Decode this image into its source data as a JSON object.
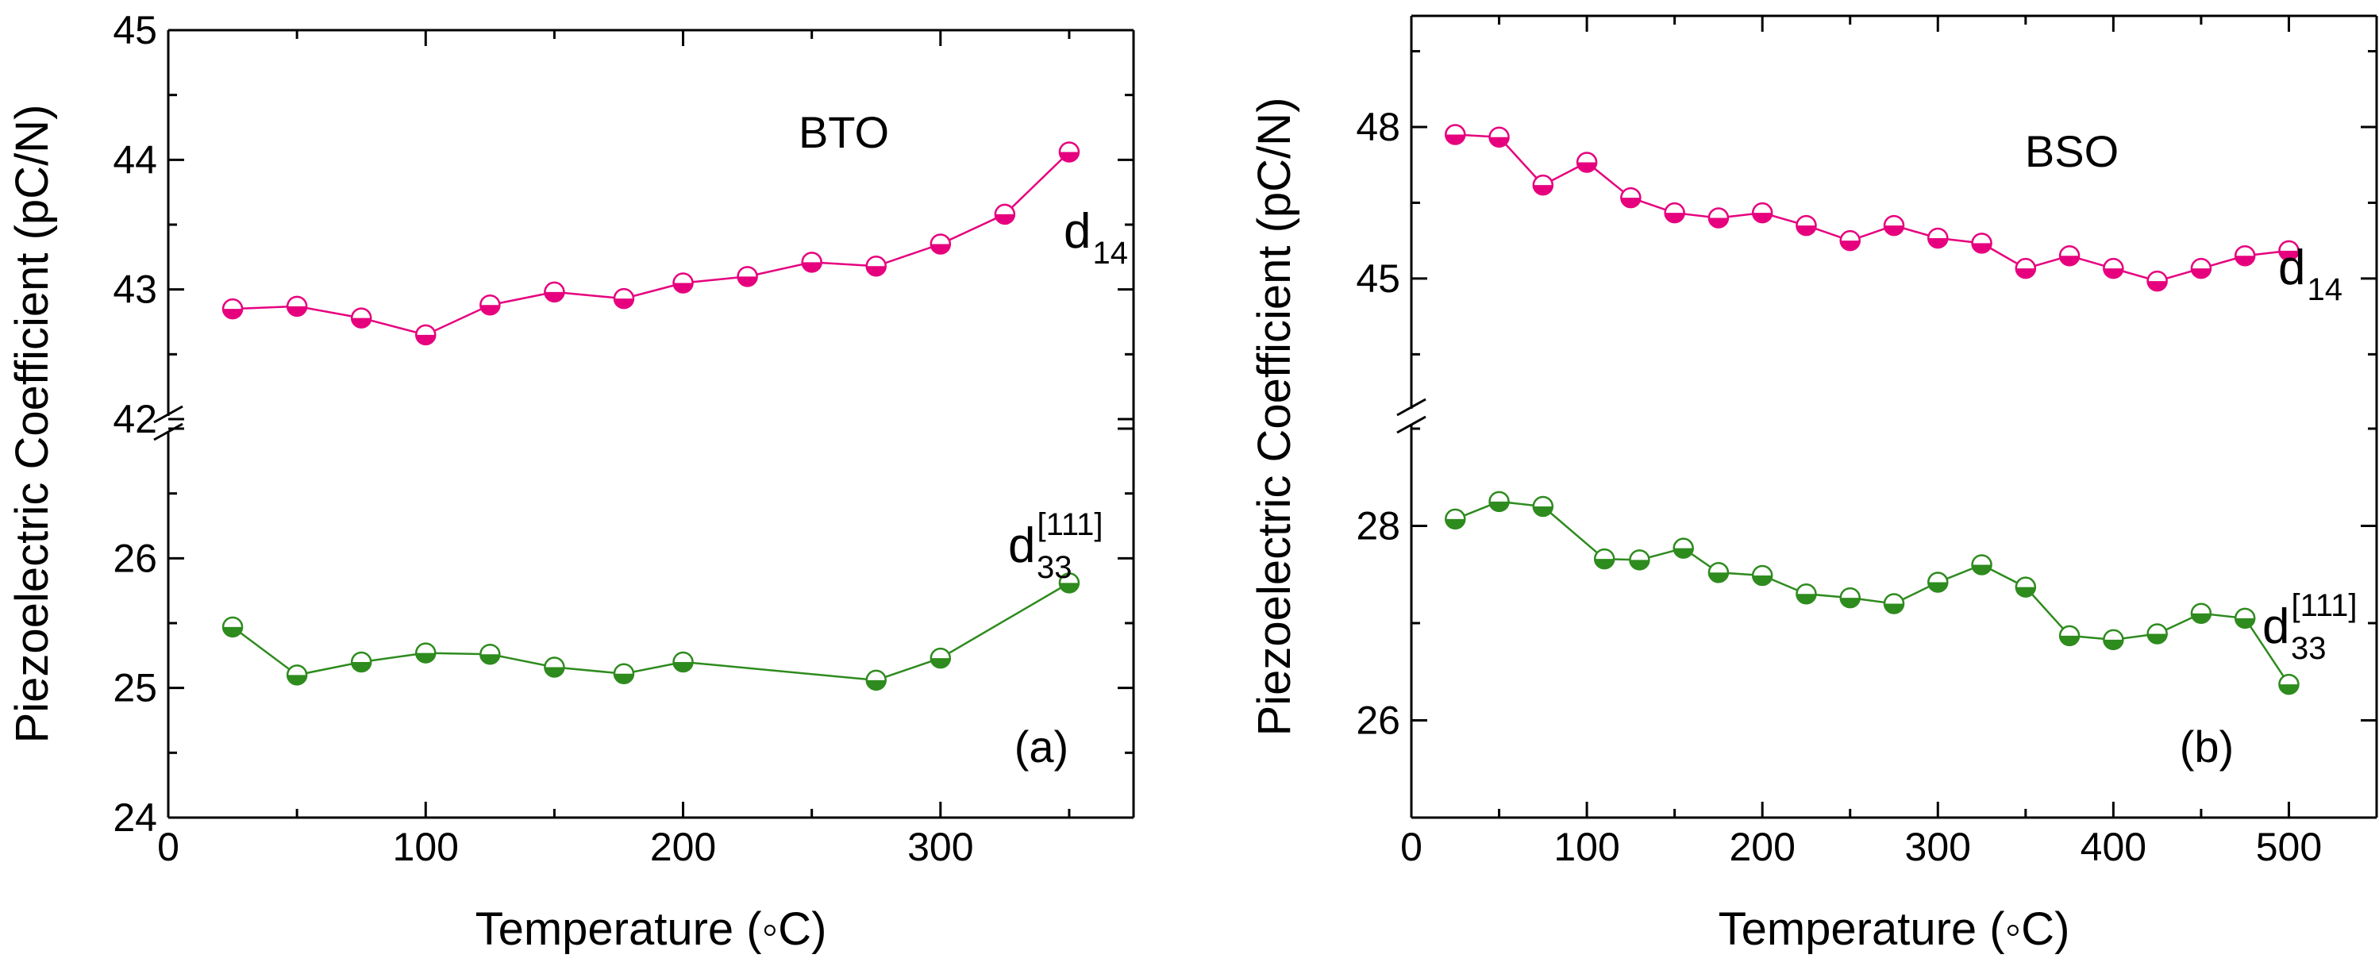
{
  "chart_data": [
    {
      "type": "line",
      "panel_label": "(a)",
      "annotation": "BTO",
      "xlabel": "Temperature (◦C)",
      "ylabel": "Piezoelectric Coefficient (pC/N)",
      "xlim": [
        0,
        375
      ],
      "xticks": [
        0,
        100,
        200,
        300
      ],
      "broken_y_axis": true,
      "upper_ylim": [
        42,
        45
      ],
      "upper_yticks": [
        42,
        43,
        44,
        45
      ],
      "lower_ylim": [
        24,
        27
      ],
      "lower_yticks": [
        24,
        25,
        26
      ],
      "grid": false,
      "series": [
        {
          "name": "d14",
          "name_main": "d",
          "name_sub": "14",
          "name_sup": "",
          "color": "#e6007e",
          "segment": "upper",
          "x": [
            25,
            50,
            75,
            100,
            125,
            150,
            177,
            200,
            225,
            250,
            275,
            300,
            325,
            350
          ],
          "y": [
            42.85,
            42.87,
            42.78,
            42.65,
            42.88,
            42.98,
            42.93,
            43.05,
            43.1,
            43.21,
            43.18,
            43.35,
            43.58,
            44.06
          ]
        },
        {
          "name": "d33[111]",
          "name_main": "d",
          "name_sub": "33",
          "name_sup": "[111]",
          "color": "#2e8b1e",
          "segment": "lower",
          "x": [
            25,
            50,
            75,
            100,
            125,
            150,
            177,
            200,
            275,
            300,
            350
          ],
          "y": [
            25.47,
            25.1,
            25.2,
            25.27,
            25.26,
            25.16,
            25.11,
            25.2,
            25.06,
            25.23,
            25.81
          ]
        }
      ]
    },
    {
      "type": "line",
      "panel_label": "(b)",
      "annotation": "BSO",
      "xlabel": "Temperature (◦C)",
      "ylabel": "Piezoelectric Coefficient (pC/N)",
      "xlim": [
        0,
        550
      ],
      "xticks": [
        0,
        100,
        200,
        300,
        400,
        500
      ],
      "broken_y_axis": true,
      "upper_ylim": [
        42.5,
        50.2
      ],
      "upper_yticks": [
        45,
        48
      ],
      "lower_ylim": [
        25,
        29
      ],
      "lower_yticks": [
        26,
        28
      ],
      "grid": false,
      "series": [
        {
          "name": "d14",
          "name_main": "d",
          "name_sub": "14",
          "name_sup": "",
          "color": "#e6007e",
          "segment": "upper",
          "x": [
            25,
            50,
            75,
            100,
            125,
            150,
            175,
            200,
            225,
            250,
            275,
            300,
            325,
            350,
            375,
            400,
            425,
            450,
            475,
            500
          ],
          "y": [
            47.85,
            47.8,
            46.85,
            47.3,
            46.6,
            46.3,
            46.2,
            46.3,
            46.05,
            45.75,
            46.05,
            45.8,
            45.7,
            45.2,
            45.45,
            45.2,
            44.95,
            45.2,
            45.45,
            45.55
          ]
        },
        {
          "name": "d33[111]",
          "name_main": "d",
          "name_sub": "33",
          "name_sup": "[111]",
          "color": "#2e8b1e",
          "segment": "lower",
          "x": [
            25,
            50,
            75,
            110,
            130,
            155,
            175,
            200,
            225,
            250,
            275,
            300,
            325,
            350,
            375,
            400,
            425,
            450,
            475,
            500
          ],
          "y": [
            28.07,
            28.25,
            28.2,
            27.66,
            27.65,
            27.77,
            27.52,
            27.49,
            27.3,
            27.26,
            27.2,
            27.42,
            27.6,
            27.37,
            26.87,
            26.83,
            26.89,
            27.1,
            27.05,
            26.37
          ]
        }
      ]
    }
  ]
}
